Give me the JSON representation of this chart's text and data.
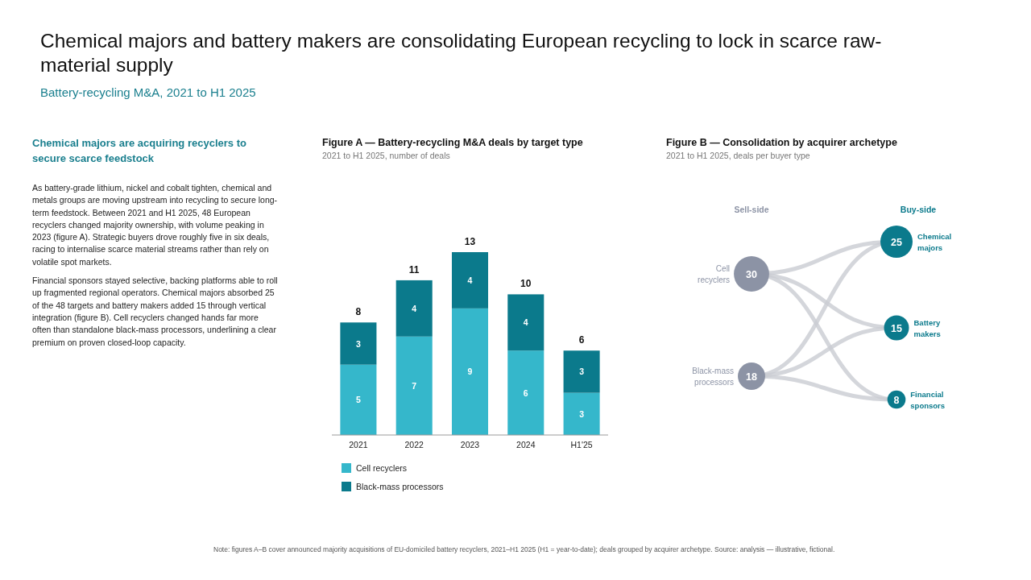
{
  "chart_data": [
    {
      "type": "other",
      "title": "Chemical majors and battery makers are consolidating European recycling to lock in scarce raw-material supply",
      "subtitle": "Battery-recycling M&A, 2021 to H1 2025",
      "annotations": [
        "Chemical majors are acquiring recyclers to secure scarce feedstock",
        "As battery-grade lithium, nickel and cobalt tighten, chemical and metals groups are moving upstream into recycling to secure long-term feedstock. Between 2021 and H1 2025, 48 European recyclers changed majority ownership, with volume peaking in 2023 (figure A). Strategic buyers drove roughly five in six deals, racing to internalise scarce material streams rather than rely on volatile spot markets.",
        "Financial sponsors stayed selective, backing platforms able to roll up fragmented regional operators. Chemical majors absorbed 25 of the 48 targets and battery makers added 15 through vertical integration (figure B). Cell recyclers changed hands far more often than standalone black-mass processors, underlining a clear premium on proven closed-loop capacity.",
        "Note: figures A–B cover announced majority acquisitions of EU-domiciled battery recyclers, 2021–H1 2025 (H1 = year-to-date); deals grouped by acquirer archetype. Source: analysis — illustrative, fictional."
      ]
    },
    {
      "type": "bar",
      "title": "Figure A — Battery-recycling M&A deals by target type",
      "subtitle": "2021 to H1 2025, number of deals",
      "categories": [
        "2021",
        "2022",
        "2023",
        "2024",
        "H1'25"
      ],
      "stacked": true,
      "data_labels": true,
      "tick_labels": "x",
      "legend": "bottom left",
      "totals": [
        "8",
        "11",
        "13",
        "10",
        "6"
      ],
      "series": [
        {
          "name": "Cell recyclers",
          "color": "#35b7cb",
          "values": [
            5,
            7,
            9,
            6,
            3
          ]
        },
        {
          "name": "Black-mass processors",
          "color": "#0b7a8c",
          "values": [
            3,
            4,
            4,
            4,
            3
          ]
        }
      ]
    },
    {
      "type": "other",
      "title": "Figure B — Consolidation by acquirer archetype",
      "subtitle": "2021 to H1 2025, deals per buyer type",
      "data_labels": true,
      "categories": [
        "Cell recyclers",
        "Black-mass processors",
        "Chemical majors",
        "Battery makers",
        "Financial sponsors"
      ],
      "series": [
        {
          "name": "Sell-side",
          "color": "#8c93a5",
          "values": [
            30,
            18,
            null,
            null,
            null
          ]
        },
        {
          "name": "Buy-side",
          "color": "#0b7a8c",
          "values": [
            null,
            null,
            25,
            15,
            8
          ]
        }
      ]
    }
  ]
}
